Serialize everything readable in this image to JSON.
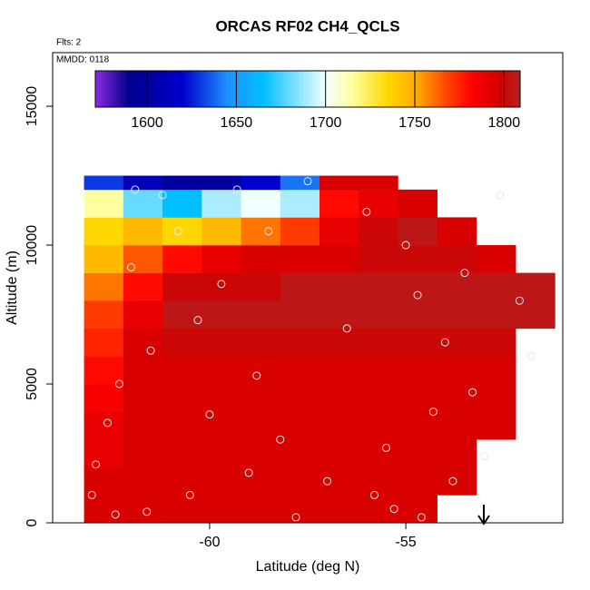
{
  "chart_data": {
    "type": "heatmap",
    "title": "ORCAS RF02 CH4_QCLS",
    "xlabel": "Latitude (deg N)",
    "ylabel": "Altitude (m)",
    "annotations": [
      "Flts: 2",
      "MMDD: 0118"
    ],
    "xlim": [
      -64,
      -51
    ],
    "xticks": [
      -60,
      -55
    ],
    "ylim": [
      0,
      16930
    ],
    "yticks": [
      0,
      5000,
      10000,
      15000
    ],
    "x_bins": [
      -63.2,
      -62.2,
      -61.2,
      -60.2,
      -59.2,
      -58.2,
      -57.2,
      -56.2,
      -55.2,
      -54.2,
      -53.2,
      -52.2,
      -51.2
    ],
    "y_bins": [
      0,
      1000,
      2000,
      3000,
      4000,
      5000,
      6000,
      7000,
      8000,
      9000,
      10000,
      11000,
      12000,
      12500
    ],
    "z": [
      [
        1795,
        1795,
        1795,
        1795,
        1795,
        1795,
        1795,
        1795,
        1795,
        null,
        null,
        null
      ],
      [
        1795,
        1795,
        1795,
        1795,
        1795,
        1795,
        1795,
        1795,
        1795,
        1795,
        null,
        null
      ],
      [
        1790,
        1795,
        1795,
        1795,
        1795,
        1795,
        1795,
        1795,
        1795,
        1795,
        null,
        null
      ],
      [
        1790,
        1795,
        1795,
        1795,
        1795,
        1795,
        1795,
        1795,
        1795,
        1795,
        1795,
        null
      ],
      [
        1785,
        1795,
        1795,
        1795,
        1795,
        1795,
        1795,
        1795,
        1795,
        1795,
        1795,
        null
      ],
      [
        1780,
        1795,
        1795,
        1795,
        1795,
        1795,
        1795,
        1795,
        1795,
        1795,
        1795,
        null
      ],
      [
        1775,
        1795,
        1800,
        1800,
        1800,
        1800,
        1800,
        1800,
        1800,
        1800,
        1800,
        null
      ],
      [
        1770,
        1790,
        1805,
        1805,
        1805,
        1805,
        1805,
        1805,
        1805,
        1805,
        1805,
        1805
      ],
      [
        1760,
        1780,
        1800,
        1800,
        1800,
        1805,
        1805,
        1805,
        1805,
        1805,
        1805,
        1805
      ],
      [
        1745,
        1765,
        1780,
        1790,
        1795,
        1795,
        1795,
        1800,
        1800,
        1800,
        1795,
        null
      ],
      [
        1735,
        1745,
        1735,
        1745,
        1760,
        1770,
        1790,
        1800,
        1805,
        1795,
        null,
        null
      ],
      [
        1715,
        1680,
        1665,
        1690,
        1700,
        1690,
        1780,
        1790,
        1795,
        null,
        null,
        null
      ],
      [
        1630,
        1610,
        1600,
        1600,
        1620,
        1640,
        1795,
        1795,
        null,
        null,
        null,
        null
      ]
    ],
    "clim": [
      1571,
      1809
    ],
    "cticks": [
      1600,
      1650,
      1700,
      1750,
      1800
    ],
    "colormap": [
      {
        "value": 1571,
        "color": "#8a2be2"
      },
      {
        "value": 1590,
        "color": "#00008b"
      },
      {
        "value": 1620,
        "color": "#0000cd"
      },
      {
        "value": 1645,
        "color": "#1e90ff"
      },
      {
        "value": 1665,
        "color": "#00bfff"
      },
      {
        "value": 1700,
        "color": "#f0ffff"
      },
      {
        "value": 1715,
        "color": "#ffffa0"
      },
      {
        "value": 1735,
        "color": "#ffd700"
      },
      {
        "value": 1752,
        "color": "#ffa500"
      },
      {
        "value": 1768,
        "color": "#ff4500"
      },
      {
        "value": 1782,
        "color": "#ff0000"
      },
      {
        "value": 1798,
        "color": "#d00000"
      },
      {
        "value": 1809,
        "color": "#b22222"
      }
    ],
    "points": {
      "lat": [
        -63.0,
        -62.9,
        -62.6,
        -62.3,
        -62.0,
        -61.5,
        -61.2,
        -60.8,
        -60.3,
        -60.0,
        -59.7,
        -59.3,
        -58.8,
        -58.2,
        -57.5,
        -57.0,
        -56.5,
        -56.0,
        -55.5,
        -55.3,
        -55.0,
        -54.7,
        -54.3,
        -54.0,
        -53.5,
        -53.3,
        -53.0,
        -52.6,
        -52.1,
        -51.8,
        -62.4,
        -61.6,
        -60.5,
        -59.0,
        -57.8,
        -55.8,
        -54.6,
        -53.8,
        -61.9,
        -58.5
      ],
      "alt": [
        1000,
        2100,
        3600,
        5000,
        9200,
        6200,
        11800,
        10500,
        7300,
        3900,
        8600,
        12000,
        5300,
        3000,
        12300,
        1500,
        7000,
        11200,
        2700,
        500,
        10000,
        8200,
        4000,
        6500,
        9000,
        4700,
        2400,
        11800,
        8000,
        6000,
        300,
        400,
        1000,
        1800,
        200,
        1000,
        200,
        1500,
        12000,
        10500
      ]
    },
    "marker_color": "#e8e8e8"
  }
}
